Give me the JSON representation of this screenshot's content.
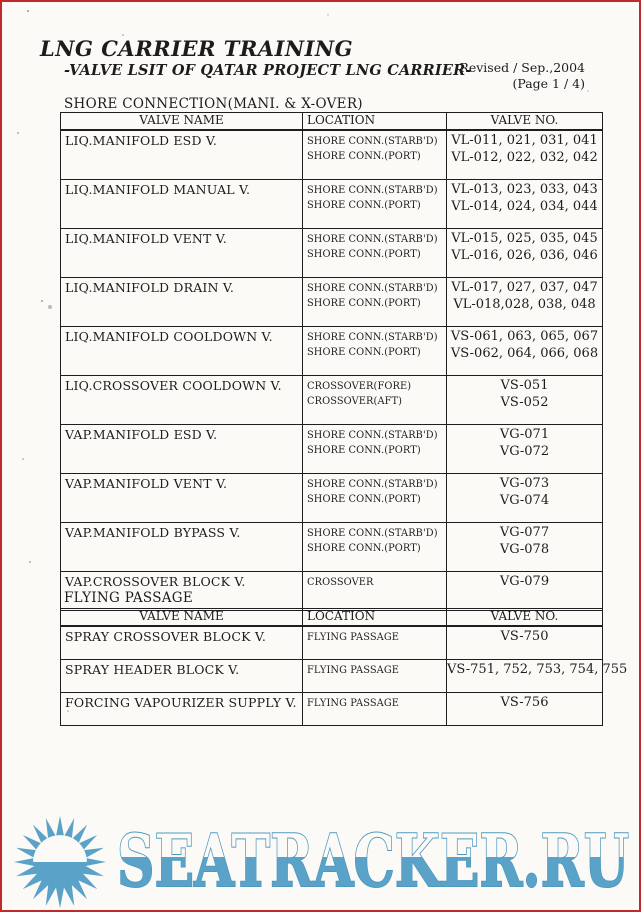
{
  "doc": {
    "title": "LNG CARRIER TRAINING",
    "subtitle": "-VALVE LSIT OF QATAR PROJECT LNG CARRIER-",
    "revised": "Revised / Sep.,2004",
    "page_no": "(Page 1 / 4)"
  },
  "sections": [
    {
      "heading": "SHORE CONNECTION(MANI. & X-OVER)",
      "columns": [
        "VALVE NAME",
        "LOCATION",
        "VALVE NO."
      ],
      "rows": [
        {
          "name": "LIQ.MANIFOLD ESD V.",
          "locations": [
            "SHORE CONN.(STARB'D)",
            "SHORE CONN.(PORT)"
          ],
          "valve_nos": [
            "VL-011, 021, 031, 041",
            "VL-012, 022, 032, 042"
          ]
        },
        {
          "name": "LIQ.MANIFOLD MANUAL V.",
          "locations": [
            "SHORE CONN.(STARB'D)",
            "SHORE CONN.(PORT)"
          ],
          "valve_nos": [
            "VL-013, 023, 033, 043",
            "VL-014, 024, 034, 044"
          ]
        },
        {
          "name": "LIQ.MANIFOLD VENT V.",
          "locations": [
            "SHORE CONN.(STARB'D)",
            "SHORE CONN.(PORT)"
          ],
          "valve_nos": [
            "VL-015, 025, 035, 045",
            "VL-016, 026, 036, 046"
          ]
        },
        {
          "name": "LIQ.MANIFOLD DRAIN V.",
          "locations": [
            "SHORE CONN.(STARB'D)",
            "SHORE CONN.(PORT)"
          ],
          "valve_nos": [
            "VL-017, 027, 037, 047",
            "VL-018,028, 038, 048"
          ]
        },
        {
          "name": "LIQ.MANIFOLD COOLDOWN V.",
          "locations": [
            "SHORE CONN.(STARB'D)",
            "SHORE CONN.(PORT)"
          ],
          "valve_nos": [
            "VS-061, 063, 065, 067",
            "VS-062, 064, 066, 068"
          ]
        },
        {
          "name": "LIQ.CROSSOVER COOLDOWN V.",
          "locations": [
            "CROSSOVER(FORE)",
            "CROSSOVER(AFT)"
          ],
          "valve_nos": [
            "VS-051",
            "VS-052"
          ]
        },
        {
          "name": "VAP.MANIFOLD ESD V.",
          "locations": [
            "SHORE CONN.(STARB'D)",
            "SHORE CONN.(PORT)"
          ],
          "valve_nos": [
            "VG-071",
            "VG-072"
          ]
        },
        {
          "name": "VAP.MANIFOLD VENT V.",
          "locations": [
            "SHORE CONN.(STARB'D)",
            "SHORE CONN.(PORT)"
          ],
          "valve_nos": [
            "VG-073",
            "VG-074"
          ]
        },
        {
          "name": "VAP.MANIFOLD BYPASS V.",
          "locations": [
            "SHORE CONN.(STARB'D)",
            "SHORE CONN.(PORT)"
          ],
          "valve_nos": [
            "VG-077",
            "VG-078"
          ]
        },
        {
          "name": "VAP.CROSSOVER BLOCK V.",
          "locations": [
            "CROSSOVER"
          ],
          "valve_nos": [
            "VG-079"
          ]
        }
      ]
    },
    {
      "heading": "FLYING PASSAGE",
      "columns": [
        "VALVE NAME",
        "LOCATION",
        "VALVE NO."
      ],
      "rows": [
        {
          "name": "SPRAY CROSSOVER BLOCK V.",
          "locations": [
            "FLYING PASSAGE"
          ],
          "valve_nos": [
            "VS-750"
          ]
        },
        {
          "name": "SPRAY HEADER BLOCK V.",
          "locations": [
            "FLYING PASSAGE"
          ],
          "valve_nos": [
            "VS-751, 752, 753, 754, 755"
          ]
        },
        {
          "name": "FORCING VAPOURIZER SUPPLY V.",
          "locations": [
            "FLYING PASSAGE"
          ],
          "valve_nos": [
            "VS-756"
          ]
        }
      ]
    }
  ],
  "watermark": {
    "text": "SEATRACKER.RU",
    "color": "#5ba2c8",
    "logo": "sun"
  }
}
